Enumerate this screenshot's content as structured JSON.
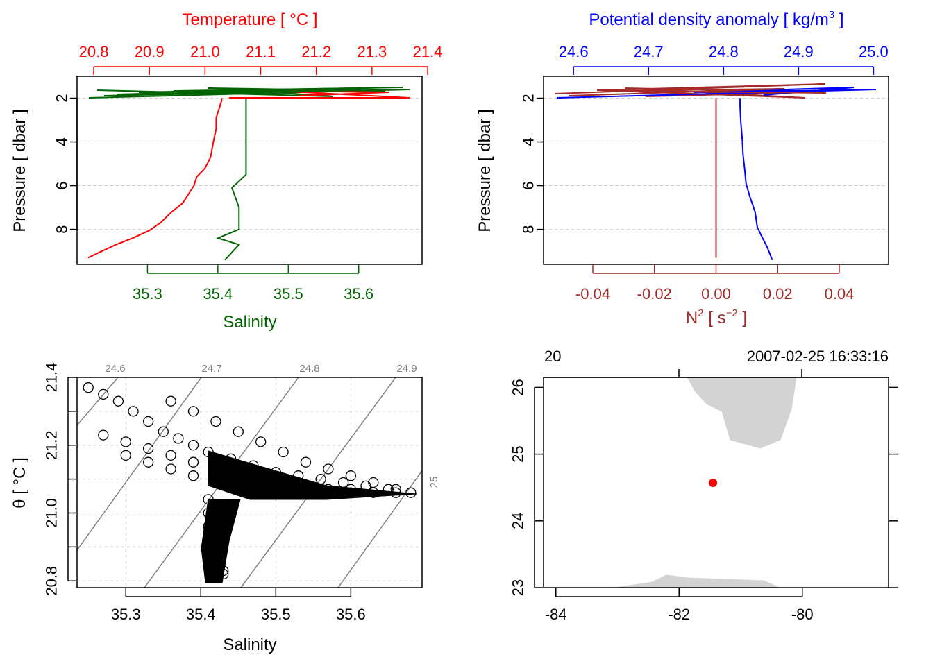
{
  "chart_data": [
    {
      "panel": "profile-temperature-salinity",
      "type": "line",
      "top_axis": {
        "label": "Temperature [ °C ]",
        "color": "#ff0000",
        "ticks": [
          "20.8",
          "20.9",
          "21.0",
          "21.1",
          "21.2",
          "21.3",
          "21.4"
        ],
        "range": [
          20.77,
          21.39
        ]
      },
      "bottom_axis": {
        "label": "Salinity",
        "color": "#006400",
        "ticks": [
          "35.3",
          "35.4",
          "35.5",
          "35.6"
        ],
        "range": [
          35.2,
          35.69
        ]
      },
      "y_axis": {
        "label": "Pressure [ dbar ]",
        "ticks": [
          "2",
          "4",
          "6",
          "8"
        ],
        "range": [
          9.6,
          1.0
        ],
        "reversed": true
      },
      "grid": true,
      "series": [
        {
          "color": "#ff0000",
          "x_units": "temperature",
          "x": [
            20.79,
            20.81,
            20.84,
            20.87,
            20.9,
            20.92,
            20.94,
            20.96,
            20.97,
            20.98,
            20.985,
            21.0,
            21.01,
            21.015,
            21.02,
            21.02,
            21.025,
            21.03,
            21.03
          ],
          "y": [
            9.3,
            9.05,
            8.7,
            8.4,
            8.05,
            7.7,
            7.2,
            6.8,
            6.4,
            6.0,
            5.6,
            5.2,
            4.7,
            4.0,
            3.4,
            2.9,
            2.5,
            2.1,
            2.0
          ]
        },
        {
          "color": "#006400",
          "x_units": "salinity",
          "x": [
            35.41,
            35.43,
            35.4,
            35.43,
            35.43,
            35.42,
            35.44,
            35.44,
            35.44,
            35.44,
            35.44,
            35.44,
            35.44
          ],
          "y": [
            9.4,
            8.7,
            8.4,
            8.0,
            7.0,
            6.1,
            5.5,
            4.8,
            4.0,
            3.5,
            3.0,
            2.5,
            2.0
          ]
        }
      ]
    },
    {
      "panel": "profile-density-n2",
      "type": "line",
      "top_axis": {
        "label": "Potential density anomaly [ kg/m",
        "label_sup": "3",
        "label_end": " ]",
        "color": "#0000ff",
        "ticks": [
          "24.6",
          "24.7",
          "24.8",
          "24.9",
          "25.0"
        ],
        "range": [
          24.56,
          25.02
        ]
      },
      "bottom_axis": {
        "label": "N",
        "label_sup": "2",
        "label_mid": " [ s",
        "label_sup2": "−2",
        "label_end": " ]",
        "color": "#a52a2a",
        "ticks": [
          "-0.04",
          "-0.02",
          "0.00",
          "0.02",
          "0.04"
        ],
        "range": [
          -0.056,
          0.056
        ]
      },
      "y_axis": {
        "label": "Pressure [ dbar ]",
        "ticks": [
          "2",
          "4",
          "6",
          "8"
        ],
        "range": [
          9.6,
          1.0
        ],
        "reversed": true
      },
      "grid": true,
      "series": [
        {
          "color": "#0000ff",
          "x_units": "sigma",
          "x": [
            24.865,
            24.858,
            24.852,
            24.845,
            24.842,
            24.835,
            24.83,
            24.828,
            24.826,
            24.825,
            24.823,
            24.822,
            24.822
          ],
          "y": [
            9.4,
            8.8,
            8.4,
            7.9,
            7.2,
            6.5,
            5.9,
            5.2,
            4.6,
            3.9,
            3.1,
            2.4,
            2.0
          ]
        },
        {
          "color": "#a52a2a",
          "x_units": "n2",
          "x": [
            0.0,
            0.0,
            0.0,
            0.0,
            0.0,
            0.0,
            0.0,
            0.0,
            0.0,
            0.0
          ],
          "y": [
            9.3,
            8.4,
            7.5,
            6.8,
            6.0,
            5.0,
            4.0,
            3.0,
            2.4,
            2.0
          ]
        }
      ]
    },
    {
      "panel": "ts-diagram",
      "type": "scatter",
      "x_axis": {
        "label": "Salinity",
        "ticks": [
          "35.3",
          "35.4",
          "35.5",
          "35.6"
        ],
        "range": [
          35.235,
          35.695
        ]
      },
      "y_axis": {
        "label": "θ [ °C ]",
        "ticks": [
          "20.8",
          "21.0",
          "21.2",
          "21.4"
        ],
        "range": [
          20.78,
          21.4
        ]
      },
      "grid": true,
      "isopycnal_labels": [
        "24.6",
        "24.7",
        "24.8",
        "24.9",
        "25"
      ],
      "isopycnal_color": "#808080",
      "point_color": "#000000",
      "x": [
        35.25,
        35.27,
        35.29,
        35.31,
        35.33,
        35.35,
        35.37,
        35.39,
        35.41,
        35.44,
        35.47,
        35.5,
        35.53,
        35.56,
        35.59,
        35.62,
        35.65,
        35.68,
        35.36,
        35.39,
        35.42,
        35.45,
        35.48,
        35.51,
        35.54,
        35.57,
        35.6,
        35.63,
        35.66,
        35.27,
        35.3,
        35.33,
        35.36,
        35.39,
        35.42,
        35.45,
        35.48,
        35.51,
        35.54,
        35.57,
        35.6,
        35.63,
        35.66,
        35.3,
        35.33,
        35.36,
        35.39,
        35.42,
        35.45,
        35.48,
        35.51,
        35.54,
        35.57,
        35.6,
        35.41,
        35.41,
        35.41,
        35.42,
        35.42,
        35.42,
        35.43,
        35.43,
        35.43
      ],
      "y": [
        21.37,
        21.35,
        21.33,
        21.3,
        21.27,
        21.24,
        21.22,
        21.2,
        21.18,
        21.16,
        21.14,
        21.12,
        21.11,
        21.1,
        21.09,
        21.08,
        21.07,
        21.06,
        21.33,
        21.3,
        21.27,
        21.24,
        21.21,
        21.18,
        21.15,
        21.13,
        21.11,
        21.09,
        21.07,
        21.23,
        21.21,
        21.19,
        21.17,
        21.15,
        21.13,
        21.11,
        21.1,
        21.09,
        21.08,
        21.07,
        21.07,
        21.06,
        21.06,
        21.17,
        21.15,
        21.13,
        21.11,
        21.1,
        21.08,
        21.07,
        21.07,
        21.06,
        21.06,
        21.06,
        21.04,
        21.0,
        20.96,
        20.92,
        20.88,
        20.85,
        20.82,
        20.83,
        20.99
      ]
    },
    {
      "panel": "station-map",
      "type": "scatter",
      "x_axis": {
        "ticks": [
          "-84",
          "-82",
          "-80"
        ],
        "range": [
          -84.2,
          -78.6
        ]
      },
      "y_axis": {
        "ticks": [
          "23",
          "24",
          "25",
          "26"
        ],
        "range": [
          23.0,
          26.15
        ]
      },
      "top_left_label": "20",
      "top_right_label": "2007-02-25 16:33:16",
      "land_color": "#d3d3d3",
      "station": {
        "lon": -81.45,
        "lat": 24.57,
        "color": "#ff0000"
      }
    }
  ]
}
